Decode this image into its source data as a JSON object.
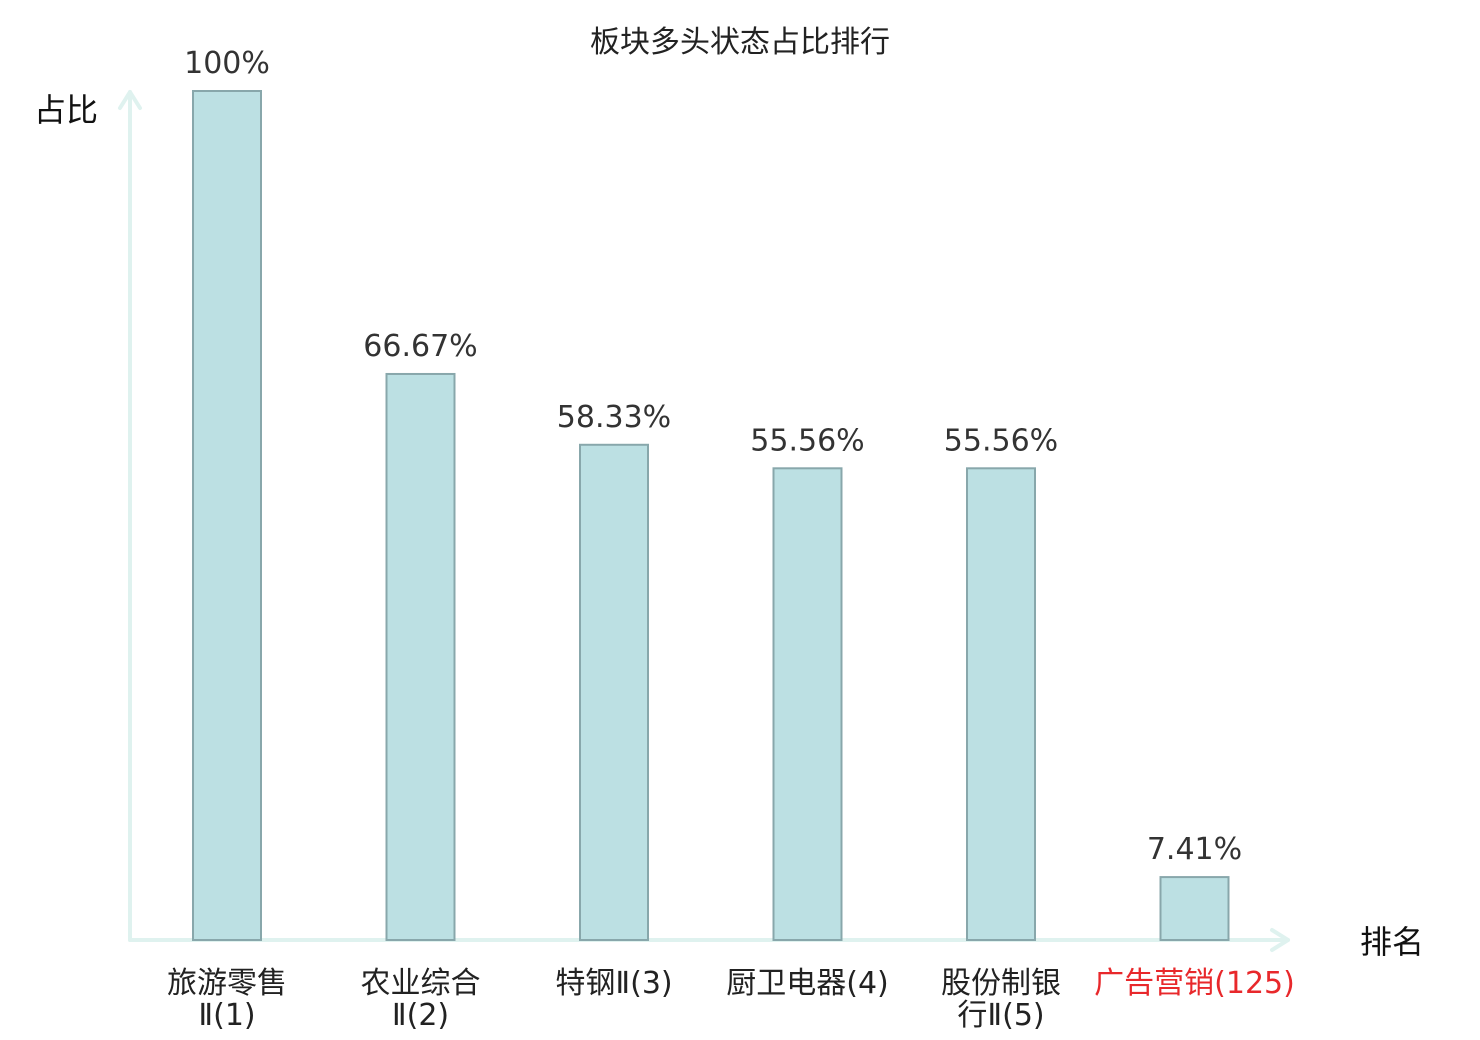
{
  "chart_data": {
    "type": "bar",
    "title": "板块多头状态占比排行",
    "ylabel": "占比",
    "xlabel": "排名",
    "ylim": [
      0,
      100
    ],
    "grid": false,
    "categories": [
      [
        "旅游零售",
        "Ⅱ(1)"
      ],
      [
        "农业综合",
        "Ⅱ(2)"
      ],
      [
        "特钢Ⅱ(3)"
      ],
      [
        "厨卫电器(4)"
      ],
      [
        "股份制银",
        "行Ⅱ(5)"
      ],
      [
        "广告营销(125)"
      ]
    ],
    "values": [
      100,
      66.67,
      58.33,
      55.56,
      55.56,
      7.41
    ],
    "value_labels": [
      "100%",
      "66.67%",
      "58.33%",
      "55.56%",
      "55.56%",
      "7.41%"
    ],
    "highlight_index": 5,
    "colors": {
      "bar_fill": "#bce0e3",
      "bar_stroke": "#88a7ab",
      "axis": "#dff2ef",
      "label": "#222222",
      "highlight": "#e8282b"
    }
  }
}
